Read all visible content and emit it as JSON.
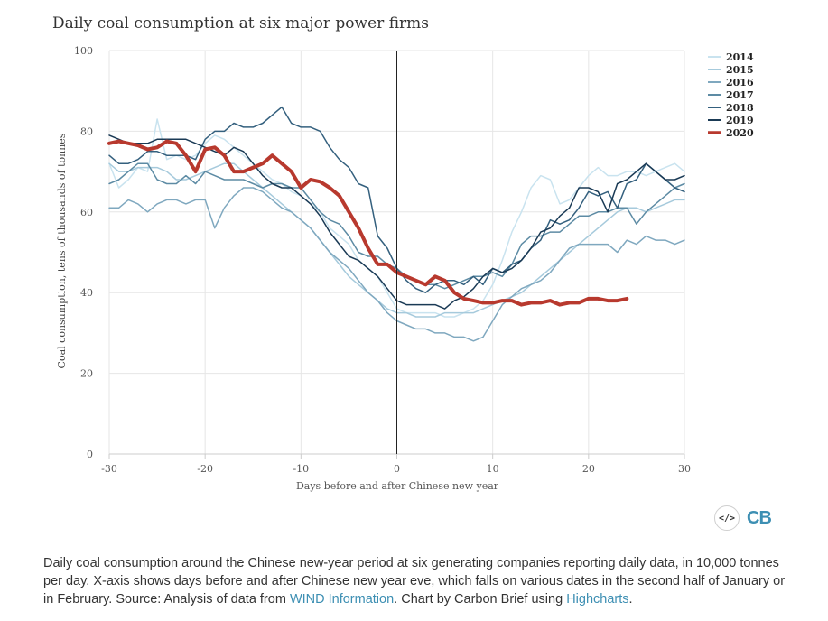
{
  "chart_data": {
    "type": "line",
    "title": "Daily coal consumption at six major power firms",
    "xlabel": "Days before and after Chinese new year",
    "ylabel": "Coal consumption, tens of thousands of tonnes",
    "xlim": [
      -30,
      30
    ],
    "ylim": [
      0,
      100
    ],
    "xticks": [
      -30,
      -20,
      -10,
      0,
      10,
      20,
      30
    ],
    "yticks": [
      0,
      20,
      40,
      60,
      80,
      100
    ],
    "x": [
      -30,
      -29,
      -28,
      -27,
      -26,
      -25,
      -24,
      -23,
      -22,
      -21,
      -20,
      -19,
      -18,
      -17,
      -16,
      -15,
      -14,
      -13,
      -12,
      -11,
      -10,
      -9,
      -8,
      -7,
      -6,
      -5,
      -4,
      -3,
      -2,
      -1,
      0,
      1,
      2,
      3,
      4,
      5,
      6,
      7,
      8,
      9,
      10,
      11,
      12,
      13,
      14,
      15,
      16,
      17,
      18,
      19,
      20,
      21,
      22,
      23,
      24,
      25,
      26,
      27,
      28,
      29,
      30
    ],
    "legend_position": "top-right",
    "series": [
      {
        "name": "2014",
        "color": "#c9e3ef",
        "width": 1.5,
        "values": [
          72,
          66,
          68,
          71,
          70,
          83,
          73,
          74,
          73,
          74,
          77,
          79,
          78,
          76,
          74,
          72,
          70,
          68,
          67,
          65,
          64,
          62,
          60,
          56,
          54,
          52,
          48,
          46,
          44,
          40,
          36,
          35,
          35,
          35,
          35,
          34,
          34,
          35,
          36,
          38,
          42,
          48,
          55,
          60,
          66,
          69,
          68,
          62,
          63,
          66,
          69,
          71,
          69,
          69,
          70,
          70,
          69,
          70,
          71,
          72,
          70
        ]
      },
      {
        "name": "2015",
        "color": "#a6cadc",
        "width": 1.5,
        "values": [
          72,
          70,
          70,
          71,
          71,
          71,
          70,
          68,
          68,
          69,
          70,
          71,
          72,
          72,
          70,
          68,
          66,
          64,
          62,
          60,
          58,
          56,
          53,
          50,
          47,
          44,
          42,
          40,
          38,
          36,
          35,
          35,
          34,
          34,
          34,
          35,
          35,
          35,
          35,
          36,
          37,
          38,
          39,
          40,
          42,
          44,
          46,
          48,
          50,
          52,
          54,
          56,
          58,
          60,
          61,
          61,
          60,
          61,
          62,
          63,
          63
        ]
      },
      {
        "name": "2016",
        "color": "#7fa8bf",
        "width": 1.5,
        "values": [
          61,
          61,
          63,
          62,
          60,
          62,
          63,
          63,
          62,
          63,
          63,
          56,
          61,
          64,
          66,
          66,
          65,
          63,
          61,
          60,
          58,
          56,
          53,
          50,
          48,
          46,
          43,
          40,
          38,
          35,
          33,
          32,
          31,
          31,
          30,
          30,
          29,
          29,
          28,
          29,
          33,
          37,
          39,
          41,
          42,
          43,
          45,
          48,
          51,
          52,
          52,
          52,
          52,
          50,
          53,
          52,
          54,
          53,
          53,
          52,
          53
        ]
      },
      {
        "name": "2017",
        "color": "#5d8ba4",
        "width": 1.5,
        "values": [
          67,
          68,
          70,
          72,
          72,
          68,
          67,
          67,
          69,
          67,
          70,
          69,
          68,
          68,
          68,
          67,
          66,
          67,
          67,
          66,
          66,
          63,
          60,
          58,
          57,
          54,
          50,
          49,
          49,
          47,
          46,
          44,
          43,
          42,
          42,
          41,
          42,
          43,
          44,
          44,
          45,
          44,
          47,
          52,
          54,
          54,
          55,
          55,
          57,
          59,
          59,
          60,
          60,
          61,
          61,
          57,
          60,
          62,
          64,
          66,
          67
        ]
      },
      {
        "name": "2018",
        "color": "#34607e",
        "width": 1.5,
        "values": [
          74,
          72,
          72,
          73,
          75,
          75,
          74,
          74,
          74,
          73,
          78,
          80,
          80,
          82,
          81,
          81,
          82,
          84,
          86,
          82,
          81,
          81,
          80,
          76,
          73,
          71,
          67,
          66,
          54,
          51,
          46,
          43,
          41,
          40,
          42,
          43,
          43,
          42,
          44,
          42,
          46,
          45,
          47,
          48,
          51,
          53,
          58,
          57,
          58,
          61,
          65,
          64,
          65,
          61,
          67,
          68,
          72,
          70,
          68,
          66,
          65
        ]
      },
      {
        "name": "2019",
        "color": "#1a3a55",
        "width": 1.5,
        "values": [
          79,
          78,
          77,
          77,
          77,
          78,
          78,
          78,
          78,
          77,
          76,
          75,
          74,
          76,
          75,
          72,
          69,
          67,
          66,
          66,
          64,
          62,
          59,
          55,
          52,
          49,
          48,
          46,
          44,
          41,
          38,
          37,
          37,
          37,
          37,
          36,
          38,
          39,
          41,
          44,
          46,
          45,
          46,
          48,
          51,
          55,
          56,
          59,
          61,
          66,
          66,
          65,
          60,
          67,
          68,
          70,
          72,
          70,
          68,
          68,
          69
        ]
      },
      {
        "name": "2020",
        "color": "#b8392e",
        "width": 4,
        "values": [
          77,
          77.5,
          77,
          76.5,
          75.5,
          76,
          77.5,
          77,
          74,
          70,
          75.5,
          76,
          74,
          70,
          70,
          71,
          72,
          74,
          72,
          70,
          66,
          68,
          67.5,
          66,
          64,
          60,
          56,
          51,
          47,
          47,
          45,
          44,
          43,
          42,
          44,
          43,
          40,
          38.5,
          38,
          37.5,
          37.5,
          38,
          38,
          37,
          37.5,
          37.5,
          38,
          37,
          37.5,
          37.5,
          38.5,
          38.5,
          38,
          38,
          38.5,
          null,
          null,
          null,
          null,
          null,
          null
        ]
      }
    ]
  },
  "logo": {
    "embed_icon": "</>",
    "brand": "CB"
  },
  "caption": {
    "text_1": "Daily coal consumption around the Chinese new-year period at six generating companies reporting daily data, in 10,000 tonnes per day. X-axis shows days before and after Chinese new year eve, which falls on various dates in the second half of January or in February. Source: Analysis of data from ",
    "link_1": "WIND Information",
    "text_2": ". Chart by Carbon Brief using ",
    "link_2": "Highcharts",
    "text_3": "."
  }
}
